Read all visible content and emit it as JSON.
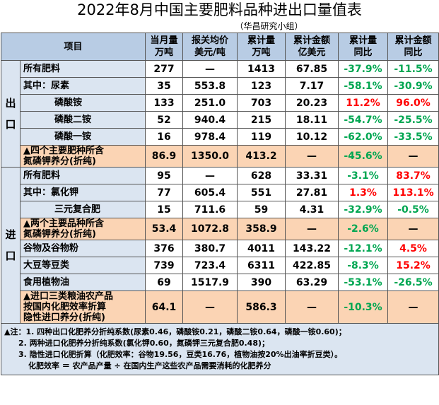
{
  "title": "2022年8月中国主要肥料品种进出口量值表",
  "subtitle": "（华昌研究小组）",
  "table": {
    "header": [
      "项目",
      [
        "当月量",
        "万吨"
      ],
      [
        "报关均价",
        "美元/吨"
      ],
      [
        "累计量",
        "万吨"
      ],
      [
        "累计金额",
        "亿美元"
      ],
      [
        "累计量",
        "同比"
      ],
      [
        "累计金额",
        "同比"
      ]
    ],
    "sections": [
      {
        "label": [
          "出",
          "口"
        ],
        "rows": [
          {
            "name": "所有肥料",
            "cells": [
              "277",
              "—",
              "1413",
              "67.85",
              "-37.9%",
              "-11.5%"
            ]
          },
          {
            "name": "其中：尿素",
            "cells": [
              "35",
              "553.8",
              "123",
              "7.17",
              "-58.1%",
              "-30.9%"
            ]
          },
          {
            "name": "磷酸铵",
            "cells": [
              "133",
              "251.0",
              "703",
              "20.23",
              "11.2%",
              "96.0%"
            ]
          },
          {
            "name": "磷酸二铵",
            "cells": [
              "52",
              "940.4",
              "215",
              "18.11",
              "-54.7%",
              "-25.5%"
            ]
          },
          {
            "name": "磷酸一铵",
            "cells": [
              "16",
              "978.4",
              "119",
              "10.12",
              "-62.0%",
              "-33.5%"
            ]
          },
          {
            "name": [
              "▲四个主要肥种所含",
              "氮磷钾养分(折纯)"
            ],
            "cells": [
              "86.9",
              "1350.0",
              "413.2",
              "—",
              "-45.6%",
              "—"
            ]
          }
        ]
      },
      {
        "label": [
          "进",
          "口"
        ],
        "rows": [
          {
            "name": "所有肥料",
            "cells": [
              "95",
              "—",
              "628",
              "33.31",
              "-3.1%",
              "83.7%"
            ]
          },
          {
            "name": "其中：氯化钾",
            "cells": [
              "77",
              "605.4",
              "551",
              "27.81",
              "1.3%",
              "113.1%"
            ]
          },
          {
            "name": "三元复合肥",
            "cells": [
              "15",
              "711.6",
              "59",
              "4.31",
              "-32.9%",
              "-0.5%"
            ]
          },
          {
            "name": [
              "▲两个主要品种所含",
              "氮磷钾养分(折纯)"
            ],
            "cells": [
              "53.4",
              "1072.8",
              "358.9",
              "—",
              "-2.6%",
              "—"
            ]
          },
          {
            "name": "谷物及谷物粉",
            "cells": [
              "376",
              "380.7",
              "4011",
              "143.22",
              "-12.1%",
              "4.5%"
            ]
          },
          {
            "name": "大豆等豆类",
            "cells": [
              "739",
              "723.4",
              "6311",
              "422.85",
              "-8.3%",
              "15.2%"
            ]
          },
          {
            "name": "食用植物油",
            "cells": [
              "69",
              "1517.9",
              "390",
              "63.29",
              "-53.1%",
              "-26.5%"
            ]
          },
          {
            "name": [
              "▲进口三类粮油农产品",
              "按国内化肥效率折算",
              "隐性进口养分(折纯)"
            ],
            "cells": [
              "64.1",
              "—",
              "586.3",
              "—",
              "-10.3%",
              "—"
            ]
          }
        ]
      }
    ],
    "notes": [
      "▲注：1. 四种出口化肥养分折纯系数(尿素0.46，磷酸铵0.21，磷酸二铵0.64，磷酸一铵0.60)；",
      "2. 两种进口化肥养分折纯系数(氯化钾0.60，氮磷钾三元复合肥0.48)；",
      "3. 隐性进口化肥折算（化肥效率：谷物19.56，豆类16.76，植物油按20%出油率折豆类）。",
      "化肥效率 ＝ 农产品产量 ÷ 在国内生产这些农产品需要消耗的化肥养分"
    ]
  }
}
